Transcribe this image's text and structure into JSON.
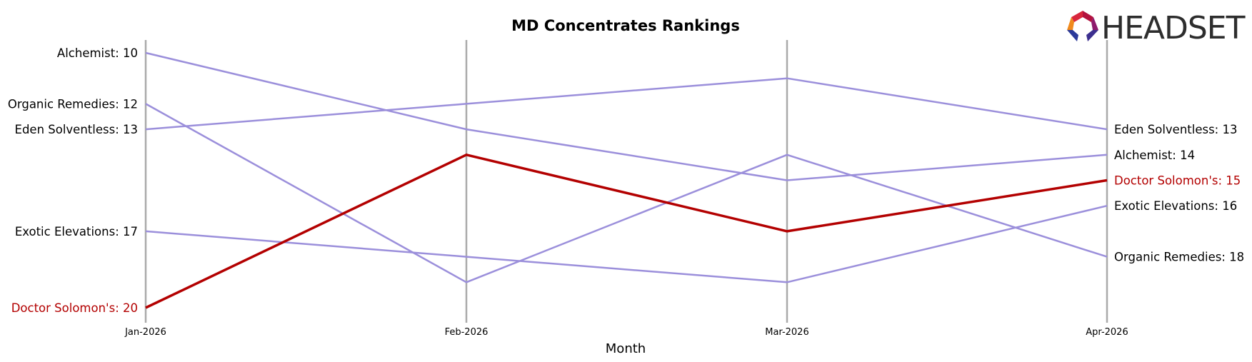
{
  "chart_data": {
    "type": "line",
    "title": "MD Concentrates Rankings",
    "xlabel": "Month",
    "ylabel": "",
    "x": [
      "Jan-2026",
      "Feb-2026",
      "Mar-2026",
      "Apr-2026"
    ],
    "ylim": [
      9.5,
      20.5
    ],
    "y_inverted": true,
    "grid": "vertical lines at each month",
    "highlight_color": "#b30000",
    "series_color": "#9b8fdb",
    "series": [
      {
        "name": "Alchemist",
        "values": [
          10,
          13,
          15,
          14
        ],
        "highlight": false
      },
      {
        "name": "Organic Remedies",
        "values": [
          12,
          19,
          14,
          18
        ],
        "highlight": false
      },
      {
        "name": "Eden Solventless",
        "values": [
          13,
          12,
          11,
          13
        ],
        "highlight": false
      },
      {
        "name": "Exotic Elevations",
        "values": [
          17,
          18,
          19,
          16
        ],
        "highlight": false
      },
      {
        "name": "Doctor Solomon's",
        "values": [
          20,
          14,
          17,
          15
        ],
        "highlight": true
      }
    ],
    "left_labels": [
      {
        "text": "Alchemist: 10",
        "series": "Alchemist",
        "value": 10
      },
      {
        "text": "Organic Remedies: 12",
        "series": "Organic Remedies",
        "value": 12
      },
      {
        "text": "Eden Solventless: 13",
        "series": "Eden Solventless",
        "value": 13
      },
      {
        "text": "Exotic Elevations: 17",
        "series": "Exotic Elevations",
        "value": 17
      },
      {
        "text": "Doctor Solomon's: 20",
        "series": "Doctor Solomon's",
        "value": 20
      }
    ],
    "right_labels": [
      {
        "text": "Eden Solventless: 13",
        "series": "Eden Solventless",
        "value": 13
      },
      {
        "text": "Alchemist: 14",
        "series": "Alchemist",
        "value": 14
      },
      {
        "text": "Doctor Solomon's: 15",
        "series": "Doctor Solomon's",
        "value": 15
      },
      {
        "text": "Exotic Elevations: 16",
        "series": "Exotic Elevations",
        "value": 16
      },
      {
        "text": "Organic Remedies: 18",
        "series": "Organic Remedies",
        "value": 18
      }
    ]
  },
  "logo": {
    "text": "HEADSET"
  }
}
